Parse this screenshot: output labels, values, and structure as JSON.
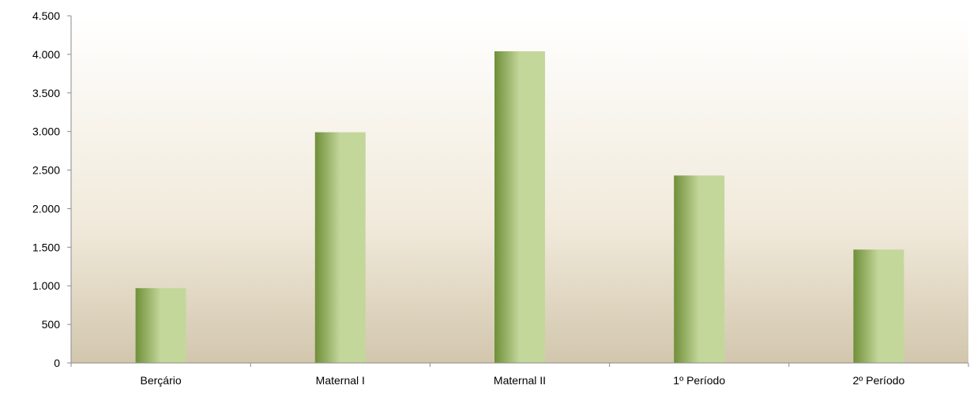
{
  "chart_data": {
    "type": "bar",
    "categories": [
      "Berçário",
      "Maternal I",
      "Maternal II",
      "1º Período",
      "2º Período"
    ],
    "values": [
      970,
      2990,
      4040,
      2430,
      1470
    ],
    "ylim": [
      0,
      4500
    ],
    "yticks": [
      0,
      500,
      1000,
      1500,
      2000,
      2500,
      3000,
      3500,
      4000,
      4500
    ],
    "ytick_labels": [
      "0",
      "500",
      "1.000",
      "1.500",
      "2.000",
      "2.500",
      "3.000",
      "3.500",
      "4.000",
      "4.500"
    ],
    "grid": false,
    "colors": {
      "bar_dark": "#6f8f38",
      "bar_light": "#c4d79b",
      "bg_top": "#ffffff",
      "bg_mid": "#f1eadb",
      "bg_bottom": "#d2c6ad"
    }
  }
}
